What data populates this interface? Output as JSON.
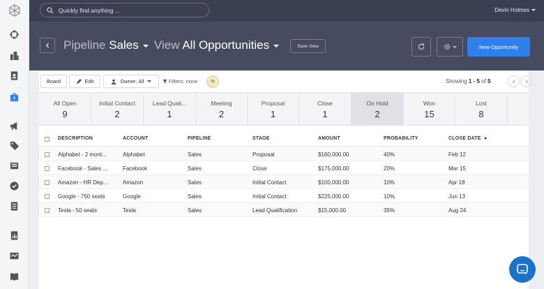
{
  "search": {
    "placeholder": "Quickly find anything ..."
  },
  "user": {
    "name": "Devin Holmes"
  },
  "header": {
    "pipeline_prefix": "Pipeline",
    "pipeline_value": "Sales",
    "view_prefix": "View",
    "view_value": "All Opportunities",
    "save_view_label": "Save View",
    "new_button_label": "New Opportunity"
  },
  "toolbar": {
    "board_label": "Board",
    "edit_label": "Edit",
    "owner_label": "Owner: All",
    "filters_label": "Filters: none",
    "add_filter_label": "+",
    "showing_prefix": "Showing",
    "showing_range": "1 - 5",
    "showing_of": "of",
    "showing_total": "5"
  },
  "stages": [
    {
      "label": "All Open",
      "count": "9"
    },
    {
      "label": "Initial Contact",
      "count": "2"
    },
    {
      "label": "Lead Quali...",
      "count": "1"
    },
    {
      "label": "Meeting",
      "count": "2"
    },
    {
      "label": "Proposal",
      "count": "1"
    },
    {
      "label": "Close",
      "count": "1"
    },
    {
      "label": "On Hold",
      "count": "2"
    },
    {
      "label": "Won",
      "count": "15"
    },
    {
      "label": "Lost",
      "count": "8"
    }
  ],
  "table": {
    "columns": [
      "DESCRIPTION",
      "ACCOUNT",
      "PIPELINE",
      "STAGE",
      "AMOUNT",
      "PROBABILITY",
      "CLOSE DATE"
    ],
    "rows": [
      [
        "Alphabet - 2 mont...",
        "Alphabet",
        "Sales",
        "Proposal",
        "$160,000.00",
        "40%",
        "Feb 12"
      ],
      [
        "Facebook - Sales ...",
        "Facebook",
        "Sales",
        "Close",
        "$175,000.00",
        "20%",
        "Mar 15"
      ],
      [
        "Amazon - HR Dep...",
        "Amazon",
        "Sales",
        "Initial Contact",
        "$100,000.00",
        "10%",
        "Apr 18"
      ],
      [
        "Google - 750 seats",
        "Google",
        "Sales",
        "Initial Contact",
        "$225,000.00",
        "10%",
        "Jun 13"
      ],
      [
        "Tesla - 50 seats",
        "Tesla",
        "Sales",
        "Lead Qualification",
        "$15,000.00",
        "35%",
        "Aug 24"
      ]
    ]
  },
  "colors": {
    "accent": "#2f80ed",
    "topbar": "#3b3f52",
    "header": "#474b60",
    "chat": "#1a73c9"
  }
}
